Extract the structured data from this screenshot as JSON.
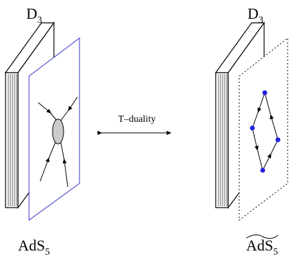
{
  "labels": {
    "left_top": {
      "base": "D",
      "sub": "3"
    },
    "right_top": {
      "base": "D",
      "sub": "3"
    },
    "left_bottom": {
      "base": "AdS",
      "sub": "5"
    },
    "right_bottom": {
      "base": "AdS",
      "sub": "5"
    }
  },
  "arrow_label": "T–duality"
}
